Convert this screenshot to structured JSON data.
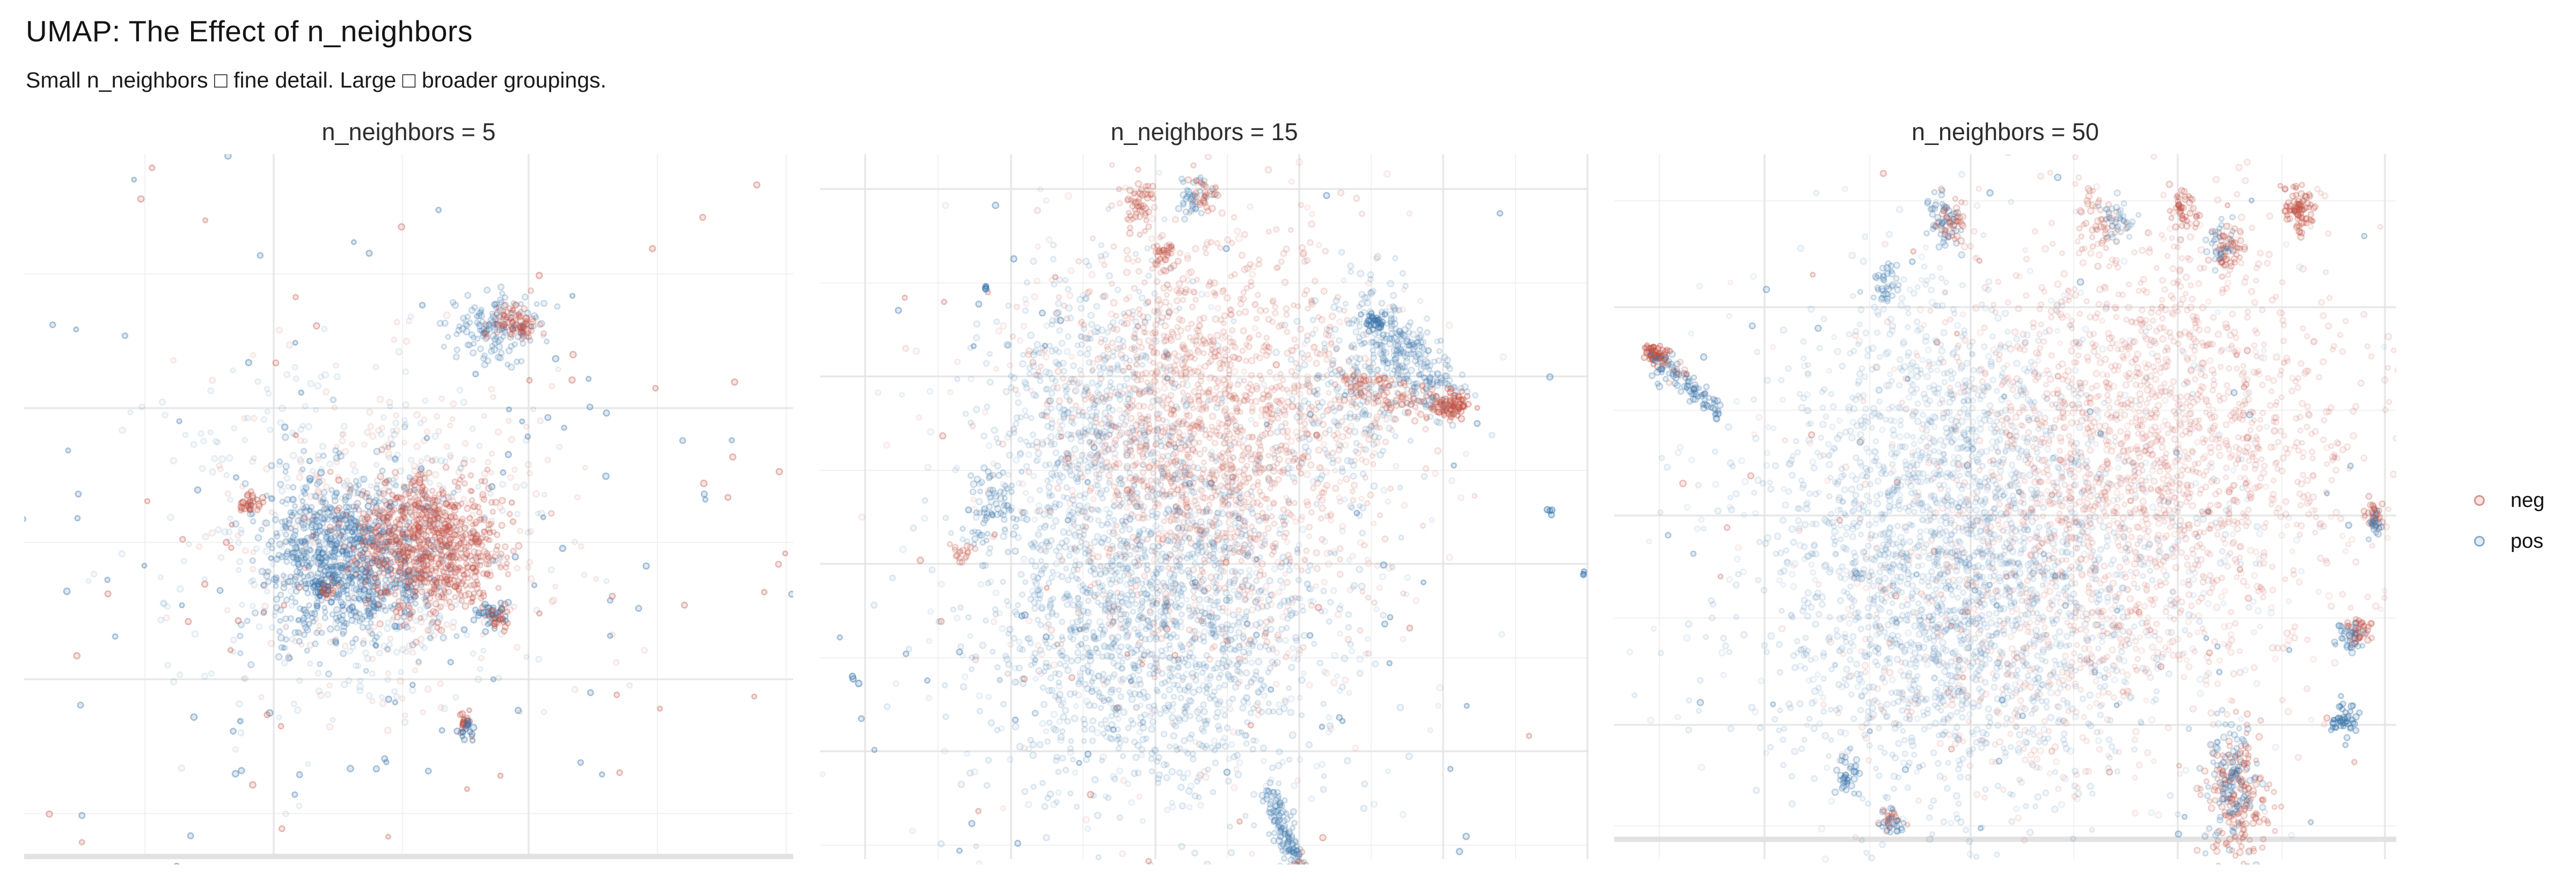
{
  "header": {
    "title": "UMAP: The Effect of n_neighbors",
    "subtitle": "Small n_neighbors □ fine detail. Large □ broader groupings."
  },
  "legend": {
    "items": [
      {
        "label": "neg",
        "color_key": "neg"
      },
      {
        "label": "pos",
        "color_key": "pos"
      }
    ]
  },
  "colors": {
    "neg": "#c14f41",
    "pos": "#3a76ab",
    "grid_minor": "#f0f0f0",
    "grid_major": "#e4e4e4",
    "zeroline": "#e2e2e2",
    "background": "#ffffff"
  },
  "chart_data": {
    "type": "scatter",
    "title": "UMAP: The Effect of n_neighbors",
    "series_labels": [
      "neg",
      "pos"
    ],
    "axes": {
      "tick_labels_shown": false,
      "grid": true
    },
    "panels": [
      {
        "title": "n_neighbors = 5",
        "grid": {
          "vm": [
            225,
            705,
            1180,
            1420
          ],
          "vM": [
            465,
            940
          ],
          "hm": [
            223,
            723,
            1228
          ],
          "hM": [
            473,
            978
          ],
          "zl": 1308,
          "gb": 1313
        },
        "clusters": [
          {
            "cls": "pos",
            "c": [
              610,
              720
            ],
            "s": [
              175,
              160
            ],
            "n": 420,
            "a": 0.14
          },
          {
            "cls": "neg",
            "c": [
              700,
              712
            ],
            "s": [
              160,
              150
            ],
            "n": 340,
            "a": 0.14
          },
          {
            "cls": "pos",
            "c": [
              700,
              740
            ],
            "s": [
              420,
              360
            ],
            "n": 120,
            "a": 0.5
          },
          {
            "cls": "neg",
            "c": [
              720,
              740
            ],
            "s": [
              430,
              370
            ],
            "n": 80,
            "a": 0.45
          },
          {
            "cls": "pos",
            "c": [
              600,
              753
            ],
            "s": [
              80,
              74
            ],
            "n": 850,
            "a": 0.32
          },
          {
            "cls": "neg",
            "c": [
              748,
              730
            ],
            "s": [
              68,
              64
            ],
            "n": 780,
            "a": 0.32
          },
          {
            "cls": "pos",
            "c": [
              875,
              323
            ],
            "s": [
              42,
              30
            ],
            "n": 140,
            "a": 0.3
          },
          {
            "cls": "neg",
            "c": [
              912,
              315
            ],
            "s": [
              22,
              17
            ],
            "n": 80,
            "a": 0.32
          },
          {
            "cls": "neg",
            "c": [
              420,
              650
            ],
            "s": [
              12,
              10
            ],
            "n": 30,
            "a": 0.4
          },
          {
            "cls": "pos",
            "c": [
              553,
              806
            ],
            "s": [
              11,
              11
            ],
            "n": 26,
            "a": 0.5
          },
          {
            "cls": "neg",
            "c": [
              563,
              813
            ],
            "s": [
              9,
              9
            ],
            "n": 14,
            "a": 0.4
          },
          {
            "cls": "neg",
            "c": [
              822,
              1058
            ],
            "s": [
              9,
              12
            ],
            "n": 20,
            "a": 0.45
          },
          {
            "cls": "pos",
            "c": [
              824,
              1076
            ],
            "s": [
              8,
              9
            ],
            "n": 14,
            "a": 0.5
          },
          {
            "cls": "pos",
            "c": [
              868,
              856
            ],
            "s": [
              15,
              11
            ],
            "n": 36,
            "a": 0.45
          },
          {
            "cls": "neg",
            "c": [
              882,
              864
            ],
            "s": [
              12,
              9
            ],
            "n": 22,
            "a": 0.4
          }
        ]
      },
      {
        "title": "n_neighbors = 15",
        "grid": {
          "vm": [
            220,
            490,
            759,
            1027,
            1296
          ],
          "vM": [
            84,
            356,
            625,
            893,
            1161,
            1430
          ],
          "hm": [
            240,
            589,
            938,
            1287
          ],
          "hM": [
            65,
            414,
            763,
            1112
          ],
          "zl": null,
          "gb": 1313
        },
        "clusters": [
          {
            "cls": "neg",
            "c": [
              680,
              620
            ],
            "s": [
              205,
              250
            ],
            "n": 450,
            "a": 0.12
          },
          {
            "cls": "pos",
            "c": [
              640,
              800
            ],
            "s": [
              205,
              230
            ],
            "n": 450,
            "a": 0.12
          },
          {
            "cls": "pos",
            "c": [
              650,
              720
            ],
            "s": [
              330,
              330
            ],
            "n": 70,
            "a": 0.5
          },
          {
            "cls": "neg",
            "c": [
              660,
              700
            ],
            "s": [
              330,
              330
            ],
            "n": 40,
            "a": 0.42
          },
          {
            "cls": "neg",
            "c": [
              722,
              513
            ],
            "s": [
              140,
              175
            ],
            "n": 1400,
            "a": 0.2
          },
          {
            "cls": "pos",
            "c": [
              622,
              863
            ],
            "s": [
              150,
              162
            ],
            "n": 1400,
            "a": 0.2
          },
          {
            "cls": "pos",
            "c": [
              500,
              470
            ],
            "s": [
              88,
              135
            ],
            "n": 420,
            "a": 0.18
          },
          {
            "cls": "pos",
            "c": [
              1005,
              420
            ],
            "s": [
              60,
              92
            ],
            "n": 240,
            "a": 0.2
          },
          {
            "cls": "neg",
            "c": [
              990,
              465
            ],
            "s": [
              48,
              70
            ],
            "n": 70,
            "a": 0.16
          },
          {
            "cls": "pos",
            "c": [
              1040,
              310
            ],
            "p2": [
              1165,
              465
            ],
            "s": [
              28,
              28
            ],
            "n": 240,
            "a": 0.24
          },
          {
            "cls": "neg",
            "c": [
              985,
              425
            ],
            "p2": [
              1170,
              470
            ],
            "s": [
              16,
              16
            ],
            "n": 110,
            "a": 0.3
          },
          {
            "cls": "neg",
            "c": [
              1178,
              468
            ],
            "s": [
              16,
              12
            ],
            "n": 55,
            "a": 0.45
          },
          {
            "cls": "pos",
            "c": [
              1032,
              312
            ],
            "s": [
              12,
              10
            ],
            "n": 28,
            "a": 0.5
          },
          {
            "cls": "pos",
            "c": [
              838,
              1190
            ],
            "p2": [
              888,
              1320
            ],
            "s": [
              11,
              11
            ],
            "n": 120,
            "a": 0.3
          },
          {
            "cls": "neg",
            "c": [
              888,
              1320
            ],
            "p2": [
              918,
              1400
            ],
            "s": [
              9,
              9
            ],
            "n": 85,
            "a": 0.35
          },
          {
            "cls": "neg",
            "c": [
              595,
              95
            ],
            "s": [
              13,
              26
            ],
            "n": 55,
            "a": 0.3
          },
          {
            "cls": "pos",
            "c": [
              700,
              82
            ],
            "s": [
              16,
              20
            ],
            "n": 36,
            "a": 0.3
          },
          {
            "cls": "neg",
            "c": [
              712,
              78
            ],
            "s": [
              14,
              18
            ],
            "n": 28,
            "a": 0.3
          },
          {
            "cls": "neg",
            "c": [
              640,
              190
            ],
            "s": [
              11,
              19
            ],
            "n": 36,
            "a": 0.3
          },
          {
            "cls": "pos",
            "c": [
              320,
              660
            ],
            "s": [
              28,
              45
            ],
            "n": 70,
            "a": 0.3
          },
          {
            "cls": "neg",
            "c": [
              273,
              738
            ],
            "s": [
              12,
              12
            ],
            "n": 18,
            "a": 0.3
          },
          {
            "cls": "pos",
            "c": [
              312,
              250
            ],
            "s": [
              5,
              4
            ],
            "n": 4,
            "a": 0.6
          },
          {
            "cls": "pos",
            "c": [
              1364,
              666
            ],
            "s": [
              5,
              4
            ],
            "n": 4,
            "a": 0.6
          },
          {
            "cls": "pos",
            "c": [
              1420,
              783
            ],
            "s": [
              4,
              4
            ],
            "n": 3,
            "a": 0.6
          },
          {
            "cls": "pos",
            "c": [
              64,
              980
            ],
            "s": [
              4,
              4
            ],
            "n": 3,
            "a": 0.6
          }
        ]
      },
      {
        "title": "n_neighbors = 50",
        "grid": {
          "vm": [
            84,
            476,
            856,
            1244
          ],
          "vM": [
            280,
            664,
            1050,
            1436
          ],
          "hm": [
            87,
            477,
            864,
            1251
          ],
          "hM": [
            285,
            673,
            1063
          ],
          "zl": 1276,
          "gb": 1313
        },
        "clusters": [
          {
            "cls": "pos",
            "c": [
              730,
              720
            ],
            "s": [
              265,
              245
            ],
            "n": 550,
            "a": 0.11
          },
          {
            "cls": "neg",
            "c": [
              900,
              650
            ],
            "s": [
              235,
              225
            ],
            "n": 380,
            "a": 0.11
          },
          {
            "cls": "pos",
            "c": [
              700,
              750
            ],
            "s": [
              360,
              340
            ],
            "n": 60,
            "a": 0.45
          },
          {
            "cls": "neg",
            "c": [
              750,
              700
            ],
            "s": [
              360,
              340
            ],
            "n": 35,
            "a": 0.4
          },
          {
            "cls": "neg",
            "c": [
              992,
              533
            ],
            "s": [
              185,
              198
            ],
            "n": 1600,
            "a": 0.17
          },
          {
            "cls": "pos",
            "c": [
              642,
              843
            ],
            "s": [
              185,
              178
            ],
            "n": 1600,
            "a": 0.17
          },
          {
            "cls": "pos",
            "c": [
              582,
              500
            ],
            "s": [
              135,
              148
            ],
            "n": 550,
            "a": 0.15
          },
          {
            "cls": "neg",
            "c": [
              800,
              930
            ],
            "s": [
              175,
              130
            ],
            "n": 350,
            "a": 0.14
          },
          {
            "cls": "neg",
            "c": [
              74,
              372
            ],
            "s": [
              10,
              9
            ],
            "n": 55,
            "a": 0.45
          },
          {
            "cls": "pos",
            "c": [
              85,
              385
            ],
            "p2": [
              195,
              478
            ],
            "s": [
              12,
              12
            ],
            "n": 90,
            "a": 0.35
          },
          {
            "cls": "neg",
            "c": [
              112,
              400
            ],
            "s": [
              14,
              18
            ],
            "n": 12,
            "a": 0.25
          },
          {
            "cls": "pos",
            "c": [
              612,
              115
            ],
            "s": [
              20,
              26
            ],
            "n": 50,
            "a": 0.32
          },
          {
            "cls": "neg",
            "c": [
              628,
              122
            ],
            "s": [
              16,
              20
            ],
            "n": 36,
            "a": 0.3
          },
          {
            "cls": "neg",
            "c": [
              900,
              130
            ],
            "s": [
              22,
              28
            ],
            "n": 50,
            "a": 0.25
          },
          {
            "cls": "pos",
            "c": [
              935,
              120
            ],
            "s": [
              18,
              22
            ],
            "n": 36,
            "a": 0.25
          },
          {
            "cls": "neg",
            "c": [
              1060,
              95
            ],
            "s": [
              14,
              20
            ],
            "n": 45,
            "a": 0.32
          },
          {
            "cls": "neg",
            "c": [
              1277,
              105
            ],
            "s": [
              15,
              22
            ],
            "n": 80,
            "a": 0.35
          },
          {
            "cls": "neg",
            "c": [
              1142,
              175
            ],
            "s": [
              18,
              21
            ],
            "n": 50,
            "a": 0.3
          },
          {
            "cls": "pos",
            "c": [
              1122,
              165
            ],
            "s": [
              15,
              18
            ],
            "n": 28,
            "a": 0.3
          },
          {
            "cls": "pos",
            "c": [
              500,
              242
            ],
            "s": [
              15,
              20
            ],
            "n": 36,
            "a": 0.3
          },
          {
            "cls": "neg",
            "c": [
              1387,
              890
            ],
            "s": [
              15,
              18
            ],
            "n": 40,
            "a": 0.35
          },
          {
            "cls": "pos",
            "c": [
              1370,
              900
            ],
            "s": [
              13,
              15
            ],
            "n": 30,
            "a": 0.35
          },
          {
            "cls": "pos",
            "c": [
              1362,
              1055
            ],
            "s": [
              12,
              16
            ],
            "n": 45,
            "a": 0.45
          },
          {
            "cls": "neg",
            "c": [
              1412,
              675
            ],
            "s": [
              10,
              14
            ],
            "n": 30,
            "a": 0.35
          },
          {
            "cls": "pos",
            "c": [
              1420,
              690
            ],
            "s": [
              9,
              12
            ],
            "n": 18,
            "a": 0.35
          },
          {
            "cls": "neg",
            "c": [
              1157,
              1200
            ],
            "s": [
              30,
              62
            ],
            "n": 190,
            "a": 0.3
          },
          {
            "cls": "pos",
            "c": [
              1150,
              1170
            ],
            "s": [
              26,
              56
            ],
            "n": 110,
            "a": 0.3
          },
          {
            "cls": "pos",
            "c": [
              432,
              1160
            ],
            "s": [
              12,
              16
            ],
            "n": 36,
            "a": 0.35
          },
          {
            "cls": "neg",
            "c": [
              512,
              1235
            ],
            "s": [
              12,
              14
            ],
            "n": 22,
            "a": 0.3
          },
          {
            "cls": "pos",
            "c": [
              520,
              1245
            ],
            "s": [
              11,
              12
            ],
            "n": 22,
            "a": 0.35
          }
        ]
      }
    ]
  }
}
